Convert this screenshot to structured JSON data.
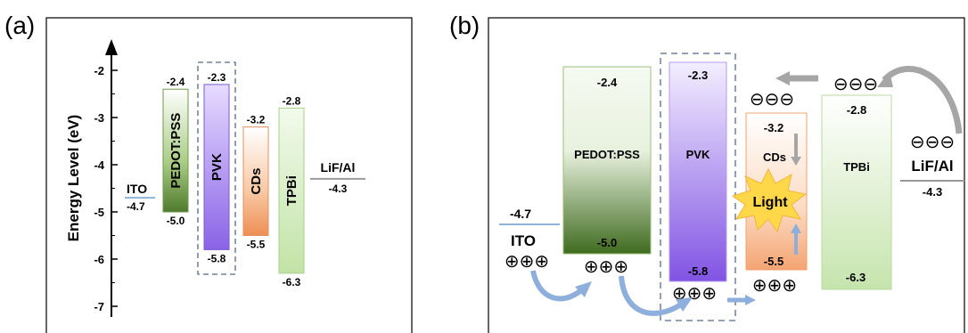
{
  "panel_a": {
    "label": "(a)",
    "ylabel": "Energy Level (eV)",
    "ticks": [
      "-2",
      "-3",
      "-4",
      "-5",
      "-6",
      "-7"
    ],
    "ito": {
      "name": "ITO",
      "value": "-4.7",
      "level": -4.7
    },
    "pedot": {
      "name": "PEDOT:PSS",
      "top": "-2.4",
      "bottom": "-5.0",
      "top_val": -2.4,
      "bottom_val": -5.0
    },
    "pvk": {
      "name": "PVK",
      "top": "-2.3",
      "bottom": "-5.8",
      "top_val": -2.3,
      "bottom_val": -5.8
    },
    "cds": {
      "name": "CDs",
      "top": "-3.2",
      "bottom": "-5.5",
      "top_val": -3.2,
      "bottom_val": -5.5
    },
    "tpbi": {
      "name": "TPBi",
      "top": "-2.8",
      "bottom": "-6.3",
      "top_val": -2.8,
      "bottom_val": -6.3
    },
    "lif": {
      "name": "LiF/Al",
      "value": "-4.3",
      "level": -4.3
    }
  },
  "panel_b": {
    "label": "(b)",
    "ito": {
      "name": "ITO",
      "value": "-4.7"
    },
    "pedot": {
      "name": "PEDOT:PSS",
      "top": "-2.4",
      "bottom": "-5.0"
    },
    "pvk": {
      "name": "PVK",
      "top": "-2.3",
      "bottom": "-5.8"
    },
    "cds": {
      "name": "CDs",
      "top": "-3.2",
      "bottom": "-5.5"
    },
    "tpbi": {
      "name": "TPBi",
      "top": "-2.8",
      "bottom": "-6.3"
    },
    "lif": {
      "name": "LiF/Al",
      "value": "-4.3"
    },
    "light_label": "Light",
    "hole_symbols": "⊕⊕⊕",
    "electron_symbols": "⊖⊖⊖"
  },
  "colors": {
    "pedot": "#7fa85a",
    "pvk": "#9a79e0",
    "cds": "#f2a777",
    "tpbi": "#c8e6b0",
    "ito_line": "#8fb2d9",
    "lif_line": "#999999",
    "arrow_blue": "#8eaedc",
    "arrow_gray": "#a6a6a6",
    "star": "#ffd84a"
  }
}
